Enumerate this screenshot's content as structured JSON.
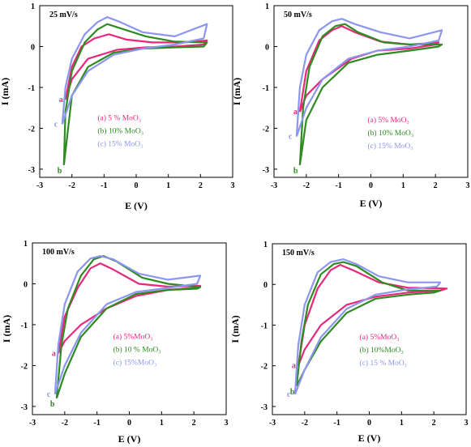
{
  "colors": {
    "a": "#e8287a",
    "b": "#2e8b22",
    "c": "#8c96ee"
  },
  "chart_data": [
    {
      "type": "line",
      "scan_rate": "25 mV/s",
      "xlabel": "E (V)",
      "ylabel": "I (mA)",
      "xlim": [
        -3,
        3
      ],
      "ylim": [
        -3.2,
        1
      ],
      "xticks": [
        "-3",
        "-2",
        "-1",
        "0",
        "1",
        "2",
        "3"
      ],
      "yticks": [
        "1",
        "0",
        "-1",
        "-2",
        "-3"
      ],
      "legend": [
        "(a)  5 % MoO₃",
        "(b)  10% MoO₃",
        "(c)  15% MoO₃"
      ],
      "curve_labels": [
        "a",
        "b",
        "c"
      ],
      "series": [
        {
          "name": "(a)  5 % MoO₃",
          "color": "a",
          "values": [
            [
              -2.2,
              -1.3
            ],
            [
              -2.0,
              -0.5
            ],
            [
              -1.7,
              0.0
            ],
            [
              -1.3,
              0.2
            ],
            [
              -0.85,
              0.3
            ],
            [
              -0.3,
              0.17
            ],
            [
              0.5,
              0.1
            ],
            [
              1.5,
              0.1
            ],
            [
              2.2,
              0.15
            ],
            [
              2.1,
              0.05
            ],
            [
              1.2,
              0.0
            ],
            [
              0.3,
              -0.02
            ],
            [
              -0.6,
              -0.08
            ],
            [
              -1.5,
              -0.3
            ],
            [
              -2.0,
              -0.8
            ],
            [
              -2.2,
              -1.3
            ]
          ]
        },
        {
          "name": "(b)  10% MoO₃",
          "color": "b",
          "values": [
            [
              -2.25,
              -2.9
            ],
            [
              -2.2,
              -1.6
            ],
            [
              -2.0,
              -0.6
            ],
            [
              -1.6,
              0.1
            ],
            [
              -1.2,
              0.42
            ],
            [
              -0.9,
              0.55
            ],
            [
              -0.5,
              0.45
            ],
            [
              0.3,
              0.25
            ],
            [
              1.2,
              0.12
            ],
            [
              2.2,
              0.1
            ],
            [
              2.1,
              0.0
            ],
            [
              1.2,
              -0.02
            ],
            [
              0.2,
              -0.05
            ],
            [
              -0.7,
              -0.15
            ],
            [
              -1.5,
              -0.5
            ],
            [
              -2.0,
              -1.2
            ],
            [
              -2.25,
              -2.9
            ]
          ]
        },
        {
          "name": "(c)  15% MoO₃",
          "color": "c",
          "values": [
            [
              -2.3,
              -1.9
            ],
            [
              -2.2,
              -1.0
            ],
            [
              -2.0,
              -0.3
            ],
            [
              -1.6,
              0.3
            ],
            [
              -1.2,
              0.6
            ],
            [
              -0.9,
              0.72
            ],
            [
              -0.5,
              0.6
            ],
            [
              0.2,
              0.35
            ],
            [
              1.2,
              0.25
            ],
            [
              2.2,
              0.55
            ],
            [
              2.1,
              0.2
            ],
            [
              1.2,
              0.05
            ],
            [
              0.2,
              -0.05
            ],
            [
              -0.7,
              -0.2
            ],
            [
              -1.5,
              -0.6
            ],
            [
              -2.0,
              -1.2
            ],
            [
              -2.3,
              -1.9
            ]
          ]
        }
      ]
    },
    {
      "type": "line",
      "scan_rate": "50 mV/s",
      "xlabel": "E (V)",
      "ylabel": "I (mA)",
      "xlim": [
        -3,
        3
      ],
      "ylim": [
        -3.2,
        1
      ],
      "xticks": [
        "-3",
        "-2",
        "-1",
        "0",
        "1",
        "2",
        "3"
      ],
      "yticks": [
        "1",
        "0",
        "-1",
        "-2",
        "-3"
      ],
      "legend": [
        "(a)    5% MoO₃",
        "(b)  10% MoO₃",
        "(c)  15% MoO₃"
      ],
      "curve_labels": [
        "a",
        "b",
        "c"
      ],
      "series": [
        {
          "name": "(a)    5% MoO₃",
          "color": "a",
          "values": [
            [
              -2.2,
              -1.6
            ],
            [
              -2.0,
              -0.6
            ],
            [
              -1.6,
              0.15
            ],
            [
              -1.2,
              0.4
            ],
            [
              -0.9,
              0.5
            ],
            [
              -0.5,
              0.35
            ],
            [
              0.3,
              0.12
            ],
            [
              1.2,
              0.05
            ],
            [
              2.1,
              0.1
            ],
            [
              2.0,
              0.05
            ],
            [
              1.2,
              -0.05
            ],
            [
              0.2,
              -0.1
            ],
            [
              -0.6,
              -0.3
            ],
            [
              -1.5,
              -0.8
            ],
            [
              -2.0,
              -1.2
            ],
            [
              -2.2,
              -1.6
            ]
          ]
        },
        {
          "name": "(b)  10% MoO₃",
          "color": "b",
          "values": [
            [
              -2.2,
              -2.9
            ],
            [
              -2.1,
              -1.5
            ],
            [
              -1.9,
              -0.5
            ],
            [
              -1.5,
              0.25
            ],
            [
              -1.1,
              0.5
            ],
            [
              -0.8,
              0.55
            ],
            [
              -0.4,
              0.35
            ],
            [
              0.4,
              0.1
            ],
            [
              1.2,
              0.05
            ],
            [
              2.2,
              0.05
            ],
            [
              2.1,
              0.0
            ],
            [
              1.2,
              -0.1
            ],
            [
              0.2,
              -0.2
            ],
            [
              -0.7,
              -0.4
            ],
            [
              -1.5,
              -1.0
            ],
            [
              -2.0,
              -1.8
            ],
            [
              -2.2,
              -2.9
            ]
          ]
        },
        {
          "name": "(c)  15% MoO₃",
          "color": "c",
          "values": [
            [
              -2.3,
              -2.2
            ],
            [
              -2.2,
              -1.0
            ],
            [
              -2.0,
              -0.2
            ],
            [
              -1.6,
              0.4
            ],
            [
              -1.2,
              0.62
            ],
            [
              -0.9,
              0.68
            ],
            [
              -0.5,
              0.55
            ],
            [
              0.3,
              0.35
            ],
            [
              1.2,
              0.2
            ],
            [
              2.2,
              0.4
            ],
            [
              2.1,
              0.15
            ],
            [
              1.2,
              0.0
            ],
            [
              0.2,
              -0.1
            ],
            [
              -0.7,
              -0.3
            ],
            [
              -1.5,
              -0.8
            ],
            [
              -2.0,
              -1.5
            ],
            [
              -2.3,
              -2.2
            ]
          ]
        }
      ]
    },
    {
      "type": "line",
      "scan_rate": "100 mV/s",
      "xlabel": "E (V)",
      "ylabel": "I (mA)",
      "xlim": [
        -3,
        3
      ],
      "ylim": [
        -3.2,
        1
      ],
      "xticks": [
        "-3",
        "-2",
        "-1",
        "0",
        "1",
        "2",
        "3"
      ],
      "yticks": [
        "1",
        "0",
        "-1",
        "-2",
        "-3"
      ],
      "legend": [
        "(a)    5%MoO₃",
        "(b)  10 % MoO₃",
        "(c)  15%MoO₃"
      ],
      "curve_labels": [
        "a",
        "b",
        "c"
      ],
      "series": [
        {
          "name": "(a)    5%MoO₃",
          "color": "a",
          "values": [
            [
              -2.2,
              -1.7
            ],
            [
              -2.0,
              -0.8
            ],
            [
              -1.6,
              -0.1
            ],
            [
              -1.2,
              0.38
            ],
            [
              -0.9,
              0.5
            ],
            [
              -0.5,
              0.35
            ],
            [
              0.3,
              0.0
            ],
            [
              1.2,
              -0.07
            ],
            [
              2.2,
              -0.05
            ],
            [
              2.0,
              -0.1
            ],
            [
              1.2,
              -0.15
            ],
            [
              0.2,
              -0.3
            ],
            [
              -0.7,
              -0.6
            ],
            [
              -1.5,
              -1.0
            ],
            [
              -2.0,
              -1.4
            ],
            [
              -2.2,
              -1.7
            ]
          ]
        },
        {
          "name": "(b)  10 % MoO₃",
          "color": "b",
          "values": [
            [
              -2.25,
              -2.8
            ],
            [
              -2.1,
              -1.5
            ],
            [
              -1.9,
              -0.6
            ],
            [
              -1.5,
              0.2
            ],
            [
              -1.1,
              0.6
            ],
            [
              -0.8,
              0.68
            ],
            [
              -0.4,
              0.55
            ],
            [
              0.4,
              0.15
            ],
            [
              1.2,
              0.0
            ],
            [
              2.2,
              -0.08
            ],
            [
              2.1,
              -0.12
            ],
            [
              1.2,
              -0.15
            ],
            [
              0.2,
              -0.25
            ],
            [
              -0.7,
              -0.6
            ],
            [
              -1.5,
              -1.3
            ],
            [
              -2.0,
              -2.2
            ],
            [
              -2.25,
              -2.8
            ]
          ]
        },
        {
          "name": "(c)  15%MoO₃",
          "color": "c",
          "values": [
            [
              -2.3,
              -2.7
            ],
            [
              -2.2,
              -1.5
            ],
            [
              -2.0,
              -0.5
            ],
            [
              -1.6,
              0.3
            ],
            [
              -1.2,
              0.62
            ],
            [
              -0.9,
              0.68
            ],
            [
              -0.5,
              0.6
            ],
            [
              0.3,
              0.25
            ],
            [
              1.2,
              0.1
            ],
            [
              2.2,
              0.2
            ],
            [
              2.1,
              0.0
            ],
            [
              1.2,
              -0.1
            ],
            [
              0.2,
              -0.2
            ],
            [
              -0.7,
              -0.5
            ],
            [
              -1.5,
              -1.2
            ],
            [
              -2.0,
              -2.0
            ],
            [
              -2.3,
              -2.7
            ]
          ]
        }
      ]
    },
    {
      "type": "line",
      "scan_rate": "150 mV/s",
      "xlabel": "E (V)",
      "ylabel": "I (mA)",
      "xlim": [
        -3,
        3
      ],
      "ylim": [
        -3.2,
        1
      ],
      "xticks": [
        "-3",
        "-2",
        "-1",
        "0",
        "1",
        "2",
        "3"
      ],
      "yticks": [
        "1",
        "0",
        "-1",
        "-2",
        "-3"
      ],
      "legend": [
        "(a)    5%MoO₃",
        "(b)  10%MoO₃",
        "(c)  15 % MoO₃"
      ],
      "curve_labels": [
        "a",
        "b",
        "c"
      ],
      "series": [
        {
          "name": "(a)    5%MoO₃",
          "color": "a",
          "values": [
            [
              -2.2,
              -2.0
            ],
            [
              -2.0,
              -1.0
            ],
            [
              -1.6,
              -0.1
            ],
            [
              -1.2,
              0.35
            ],
            [
              -0.9,
              0.48
            ],
            [
              -0.5,
              0.35
            ],
            [
              0.3,
              0.05
            ],
            [
              1.2,
              -0.08
            ],
            [
              2.4,
              -0.1
            ],
            [
              2.2,
              -0.15
            ],
            [
              1.2,
              -0.2
            ],
            [
              0.2,
              -0.3
            ],
            [
              -0.7,
              -0.5
            ],
            [
              -1.5,
              -1.0
            ],
            [
              -2.0,
              -1.6
            ],
            [
              -2.2,
              -2.0
            ]
          ]
        },
        {
          "name": "(b)  10%MoO₃",
          "color": "b",
          "values": [
            [
              -2.25,
              -2.5
            ],
            [
              -2.1,
              -1.4
            ],
            [
              -1.9,
              -0.5
            ],
            [
              -1.5,
              0.25
            ],
            [
              -1.1,
              0.5
            ],
            [
              -0.8,
              0.55
            ],
            [
              -0.4,
              0.45
            ],
            [
              0.4,
              0.05
            ],
            [
              1.2,
              -0.15
            ],
            [
              2.2,
              -0.15
            ],
            [
              2.0,
              -0.2
            ],
            [
              1.2,
              -0.25
            ],
            [
              0.2,
              -0.35
            ],
            [
              -0.7,
              -0.7
            ],
            [
              -1.5,
              -1.4
            ],
            [
              -2.0,
              -2.1
            ],
            [
              -2.25,
              -2.5
            ]
          ]
        },
        {
          "name": "(c)  15 % MoO₃",
          "color": "c",
          "values": [
            [
              -2.3,
              -2.7
            ],
            [
              -2.2,
              -1.5
            ],
            [
              -2.0,
              -0.5
            ],
            [
              -1.6,
              0.3
            ],
            [
              -1.2,
              0.55
            ],
            [
              -0.8,
              0.62
            ],
            [
              -0.4,
              0.5
            ],
            [
              0.3,
              0.2
            ],
            [
              1.2,
              0.05
            ],
            [
              2.2,
              0.05
            ],
            [
              2.1,
              -0.05
            ],
            [
              1.2,
              -0.12
            ],
            [
              0.2,
              -0.25
            ],
            [
              -0.7,
              -0.6
            ],
            [
              -1.5,
              -1.3
            ],
            [
              -2.0,
              -2.1
            ],
            [
              -2.3,
              -2.7
            ]
          ]
        }
      ]
    }
  ]
}
